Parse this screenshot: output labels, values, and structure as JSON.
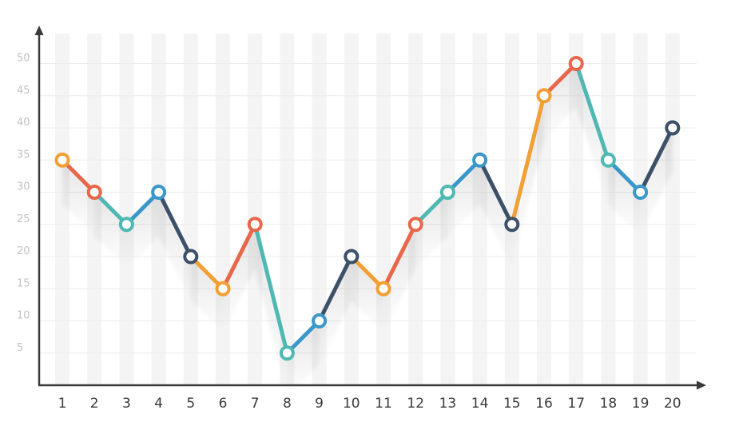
{
  "chart_data": {
    "type": "line",
    "x": [
      1,
      2,
      3,
      4,
      5,
      6,
      7,
      8,
      9,
      10,
      11,
      12,
      13,
      14,
      15,
      16,
      17,
      18,
      19,
      20
    ],
    "values": [
      35,
      30,
      25,
      30,
      20,
      15,
      25,
      5,
      10,
      20,
      15,
      25,
      30,
      35,
      25,
      45,
      50,
      35,
      30,
      40
    ],
    "point_colors": [
      "orange",
      "coral",
      "teal",
      "blue",
      "navy",
      "orange",
      "coral",
      "teal",
      "blue",
      "navy",
      "orange",
      "coral",
      "teal",
      "blue",
      "navy",
      "orange",
      "coral",
      "teal",
      "blue",
      "navy"
    ],
    "palette": {
      "orange": "#F0A035",
      "coral": "#E8674A",
      "teal": "#4FB8B3",
      "blue": "#3B97C9",
      "navy": "#3C5068"
    },
    "yticks": [
      5,
      10,
      15,
      20,
      25,
      30,
      35,
      40,
      45,
      50
    ],
    "xlim": [
      1,
      20
    ],
    "ylim": [
      0,
      50
    ],
    "title": "",
    "xlabel": "",
    "ylabel": "",
    "grid": true,
    "legend": "none",
    "axis_color": "#3a3a3a",
    "grid_color": "#ececec",
    "column_stripe_color": "#f4f4f4"
  }
}
